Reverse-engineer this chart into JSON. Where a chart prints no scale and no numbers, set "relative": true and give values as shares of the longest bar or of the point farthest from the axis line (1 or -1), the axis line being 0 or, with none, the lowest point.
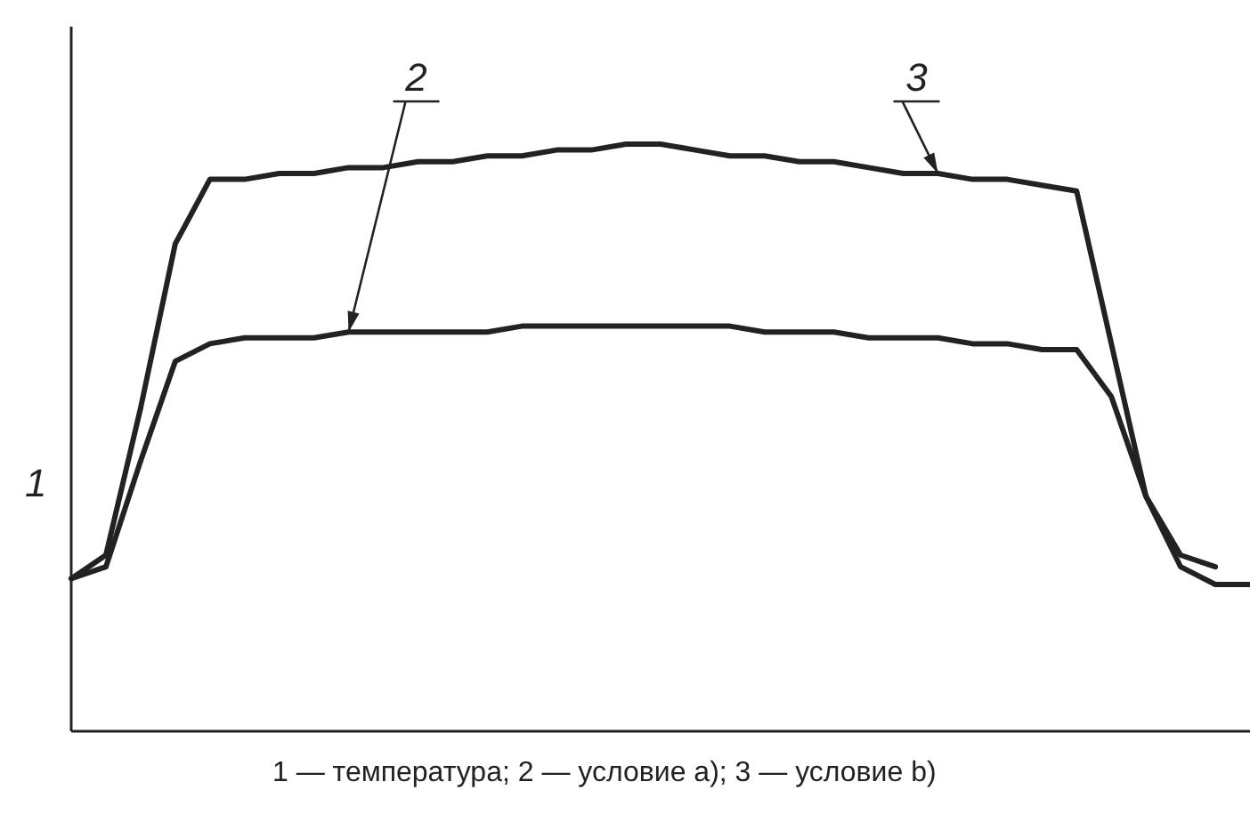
{
  "chart_data": {
    "type": "line",
    "relative": true,
    "ylabel": "1",
    "marker": "none",
    "line_style": "solid",
    "categories": [
      null,
      null,
      null,
      null,
      null,
      null,
      null,
      null,
      null,
      null,
      null,
      null,
      null,
      null,
      null,
      null,
      null,
      null,
      null,
      null,
      null,
      null,
      null,
      null,
      null,
      null,
      null,
      null,
      null,
      null,
      null,
      null,
      null,
      null,
      null
    ],
    "series": [
      {
        "color": "#222222",
        "values": [
          0.26,
          0.28,
          0.46,
          0.63,
          0.66,
          0.67,
          0.67,
          0.67,
          0.68,
          0.68,
          0.68,
          0.68,
          0.68,
          0.69,
          0.69,
          0.69,
          0.69,
          0.69,
          0.69,
          0.69,
          0.68,
          0.68,
          0.68,
          0.67,
          0.67,
          0.67,
          0.66,
          0.66,
          0.65,
          0.65,
          0.57,
          0.4,
          0.28,
          0.25,
          0.25
        ]
      },
      {
        "color": "#222222",
        "values": [
          0.26,
          0.3,
          0.55,
          0.83,
          0.94,
          0.94,
          0.95,
          0.95,
          0.96,
          0.96,
          0.97,
          0.97,
          0.98,
          0.98,
          0.99,
          0.99,
          1,
          1,
          0.99,
          0.98,
          0.98,
          0.97,
          0.97,
          0.96,
          0.95,
          0.95,
          0.94,
          0.94,
          0.93,
          0.92,
          0.66,
          0.4,
          0.3,
          0.28,
          null
        ]
      }
    ],
    "annotations": [
      "2",
      "3",
      "1 — температура; 2 — условие a); 3 — условие b)"
    ]
  }
}
